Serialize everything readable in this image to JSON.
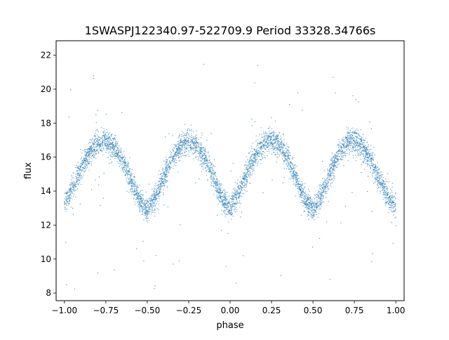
{
  "chart_data": {
    "type": "scatter",
    "title": "1SWASPJ122340.97-522709.9 Period 33328.34766s",
    "xlabel": "phase",
    "ylabel": "flux",
    "xlim": [
      -1.05,
      1.05
    ],
    "ylim": [
      7.55,
      22.85
    ],
    "xticks": [
      -1.0,
      -0.75,
      -0.5,
      -0.25,
      0.0,
      0.25,
      0.5,
      0.75,
      1.0
    ],
    "xtick_labels": [
      "−1.00",
      "−0.75",
      "−0.50",
      "−0.25",
      "0.00",
      "0.25",
      "0.50",
      "0.75",
      "1.00"
    ],
    "yticks": [
      8,
      10,
      12,
      14,
      16,
      18,
      20,
      22
    ],
    "ytick_labels": [
      "8",
      "10",
      "12",
      "14",
      "16",
      "18",
      "20",
      "22"
    ],
    "grid": false,
    "legend": "none",
    "series": [
      {
        "color": "#1f77b4",
        "x_range": [
          -1.0,
          1.0
        ],
        "x": [
          -1.0,
          -0.95,
          -0.9,
          -0.85,
          -0.8,
          -0.75,
          -0.7,
          -0.65,
          -0.6,
          -0.55,
          -0.5,
          -0.45,
          -0.4,
          -0.35,
          -0.3,
          -0.25,
          -0.2,
          -0.15,
          -0.1,
          -0.05,
          0.0,
          0.05,
          0.1,
          0.15,
          0.2,
          0.25,
          0.3,
          0.35,
          0.4,
          0.45,
          0.5,
          0.55,
          0.6,
          0.65,
          0.7,
          0.75,
          0.8,
          0.85,
          0.9,
          0.95,
          1.0
        ],
        "y": [
          13.2,
          14.2,
          15.3,
          16.2,
          16.8,
          16.9,
          16.6,
          15.8,
          14.7,
          13.5,
          12.9,
          13.6,
          14.8,
          15.9,
          16.7,
          17.0,
          16.7,
          15.9,
          14.8,
          13.6,
          13.0,
          13.8,
          15.0,
          16.1,
          16.8,
          17.0,
          16.7,
          15.9,
          14.7,
          13.5,
          12.9,
          13.7,
          14.9,
          16.1,
          16.8,
          17.0,
          16.6,
          15.8,
          14.7,
          13.7,
          13.1
        ],
        "scatter_width": 0.35,
        "outlier_range": [
          8.2,
          22.2
        ]
      }
    ]
  }
}
